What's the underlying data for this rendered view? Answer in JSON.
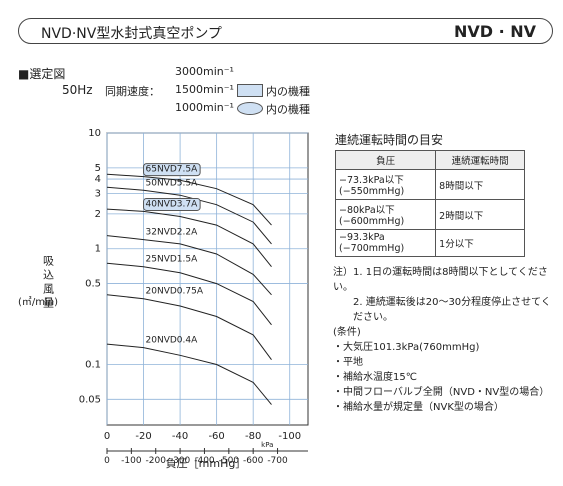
{
  "header": {
    "title": "NVD·NV型水封式真空ポンプ",
    "model": "NVD · NV"
  },
  "selection": {
    "label": "■選定図",
    "frequency": "50Hz",
    "speed_label": "同期速度：",
    "speeds": [
      "3000min⁻¹",
      "1500min⁻¹",
      "1000min⁻¹"
    ],
    "legend": [
      {
        "shape": "box",
        "text": "内の機種"
      },
      {
        "shape": "ellipse",
        "text": "内の機種"
      }
    ]
  },
  "chart_data": {
    "type": "line",
    "y_label": "吸込風量",
    "y_unit": "(㎥/min)",
    "x_unit": "kPa",
    "x_label": "負圧［mmHg］",
    "x": [
      0,
      -20,
      -40,
      -60,
      -80,
      -90
    ],
    "series": [
      {
        "name": "65NVD7.5A",
        "frame": "box",
        "color": "#222",
        "values": [
          4.4,
          4.2,
          3.9,
          3.3,
          2.4,
          1.6
        ]
      },
      {
        "name": "50NVD5.5A",
        "color": "#222",
        "values": [
          3.4,
          3.2,
          2.9,
          2.4,
          1.7,
          1.1
        ]
      },
      {
        "name": "40NVD3.7A",
        "frame": "box",
        "color": "#222",
        "values": [
          2.2,
          2.1,
          1.9,
          1.6,
          1.1,
          0.7
        ]
      },
      {
        "name": "32NVD2.2A",
        "color": "#222",
        "values": [
          1.3,
          1.2,
          1.1,
          0.9,
          0.6,
          0.4
        ]
      },
      {
        "name": "25NVD1.5A",
        "color": "#222",
        "values": [
          0.75,
          0.7,
          0.62,
          0.5,
          0.35,
          0.22
        ]
      },
      {
        "name": "20NVD0.75A",
        "color": "#222",
        "values": [
          0.4,
          0.37,
          0.32,
          0.26,
          0.18,
          0.11
        ]
      },
      {
        "name": "20NVD0.4A",
        "color": "#222",
        "values": [
          0.15,
          0.14,
          0.12,
          0.1,
          0.07,
          0.045
        ]
      }
    ],
    "log_y": true,
    "ylim": [
      0.03,
      10
    ],
    "yticks": [
      10,
      5,
      4,
      3,
      2,
      1,
      0.5,
      0.1,
      0.05
    ],
    "xlim": [
      0,
      -110
    ],
    "xticks": [
      0,
      -20,
      -40,
      -60,
      -80,
      -100
    ],
    "x2lim": [
      0,
      -825
    ],
    "x2ticks": [
      0,
      -100,
      -200,
      -300,
      -400,
      -500,
      -600,
      -700
    ],
    "grid": true
  },
  "duty": {
    "title": "連続運転時間の目安",
    "headers": [
      "負圧",
      "連続運転時間"
    ],
    "rows": [
      {
        "pressure": [
          "−73.3kPa以下",
          "(−550mmHg)"
        ],
        "time": "8時間以下"
      },
      {
        "pressure": [
          "−80kPa以下",
          "(−600mmHg)"
        ],
        "time": "2時間以下"
      },
      {
        "pressure": [
          "−93.3kPa",
          "(−700mmHg)"
        ],
        "time": "1分以下"
      }
    ],
    "notes": [
      "注）1. 1日の運転時間は8時間以下としてください。",
      "2. 連続運転後は20〜30分程度停止させてください。"
    ],
    "conditions_title": "(条件)",
    "conditions": [
      "・大気圧101.3kPa(760mmHg)",
      "・平地",
      "・補給水温度15℃",
      "・中間フローバルブ全開（NVD・NV型の場合）",
      "・補給水量が規定量（NVK型の場合）"
    ]
  }
}
